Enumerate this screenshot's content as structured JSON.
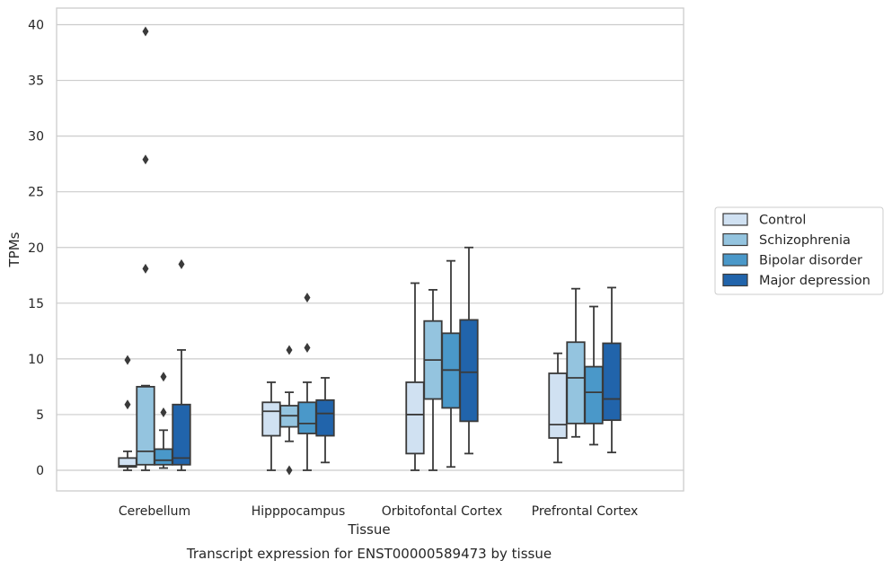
{
  "chart_data": {
    "type": "box",
    "title": "Transcript expression for ENST00000589473 by tissue",
    "xlabel": "Tissue",
    "ylabel": "TPMs",
    "ylim": [
      -1.8,
      41.5
    ],
    "yticks": [
      0,
      5,
      10,
      15,
      20,
      25,
      30,
      35,
      40
    ],
    "grid": "horizontal",
    "legend_position": "right",
    "categories": [
      "Cerebellum",
      "Hipppocampus",
      "Orbitofontal Cortex",
      "Prefrontal Cortex"
    ],
    "series": [
      {
        "name": "Control",
        "color": "#d0e1f2",
        "boxes": [
          {
            "whislo": 0.0,
            "q1": 0.3,
            "med": 0.4,
            "q3": 1.1,
            "whishi": 1.7,
            "fliers": [
              9.9,
              5.9
            ]
          },
          {
            "whislo": 0.0,
            "q1": 3.1,
            "med": 5.3,
            "q3": 6.1,
            "whishi": 7.9,
            "fliers": []
          },
          {
            "whislo": 0.0,
            "q1": 1.5,
            "med": 5.0,
            "q3": 7.9,
            "whishi": 16.8,
            "fliers": []
          },
          {
            "whislo": 0.7,
            "q1": 2.9,
            "med": 4.1,
            "q3": 8.7,
            "whishi": 10.5,
            "fliers": []
          }
        ]
      },
      {
        "name": "Schizophrenia",
        "color": "#94c4df",
        "boxes": [
          {
            "whislo": 0.0,
            "q1": 0.5,
            "med": 1.7,
            "q3": 7.5,
            "whishi": 7.6,
            "fliers": [
              39.4,
              27.9,
              18.1
            ]
          },
          {
            "whislo": 2.6,
            "q1": 3.9,
            "med": 4.9,
            "q3": 5.8,
            "whishi": 7.0,
            "fliers": [
              10.8,
              0.0
            ]
          },
          {
            "whislo": 0.0,
            "q1": 6.4,
            "med": 9.9,
            "q3": 13.4,
            "whishi": 16.2,
            "fliers": []
          },
          {
            "whislo": 3.0,
            "q1": 4.2,
            "med": 8.3,
            "q3": 11.5,
            "whishi": 16.3,
            "fliers": []
          }
        ]
      },
      {
        "name": "Bipolar disorder",
        "color": "#4a98c9",
        "boxes": [
          {
            "whislo": 0.2,
            "q1": 0.5,
            "med": 0.9,
            "q3": 1.9,
            "whishi": 3.6,
            "fliers": [
              8.4,
              5.2
            ]
          },
          {
            "whislo": 0.0,
            "q1": 3.3,
            "med": 4.2,
            "q3": 6.1,
            "whishi": 7.9,
            "fliers": [
              15.5,
              11.0
            ]
          },
          {
            "whislo": 0.3,
            "q1": 5.6,
            "med": 9.0,
            "q3": 12.3,
            "whishi": 18.8,
            "fliers": []
          },
          {
            "whislo": 2.3,
            "q1": 4.2,
            "med": 7.0,
            "q3": 9.3,
            "whishi": 14.7,
            "fliers": []
          }
        ]
      },
      {
        "name": "Major depression",
        "color": "#2164ab",
        "boxes": [
          {
            "whislo": 0.0,
            "q1": 0.5,
            "med": 1.1,
            "q3": 5.9,
            "whishi": 10.8,
            "fliers": [
              18.5
            ]
          },
          {
            "whislo": 0.7,
            "q1": 3.1,
            "med": 5.1,
            "q3": 6.3,
            "whishi": 8.3,
            "fliers": []
          },
          {
            "whislo": 1.5,
            "q1": 4.4,
            "med": 8.8,
            "q3": 13.5,
            "whishi": 20.0,
            "fliers": []
          },
          {
            "whislo": 1.6,
            "q1": 4.5,
            "med": 6.4,
            "q3": 11.4,
            "whishi": 16.4,
            "fliers": []
          }
        ]
      }
    ]
  }
}
